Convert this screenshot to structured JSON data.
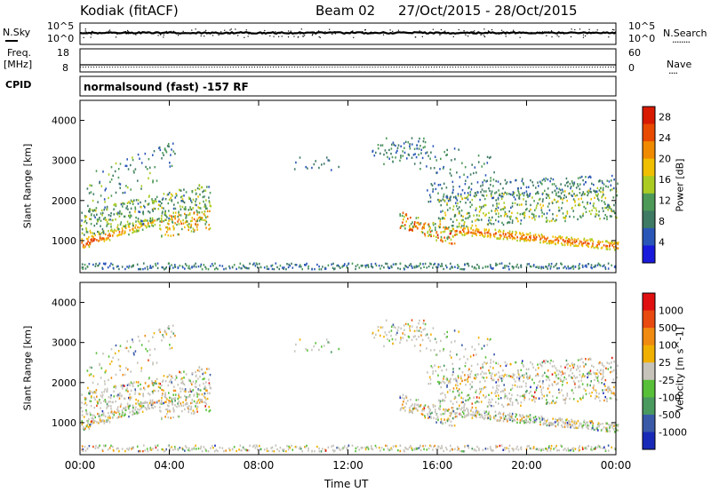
{
  "header": {
    "station": "Kodiak (fitACF)",
    "beam": "Beam 02",
    "dates": "27/Oct/2015 - 28/Oct/2015"
  },
  "nsky_panel": {
    "left_label": "N.Sky",
    "right_label": "N.Search",
    "left_ticks": [
      "10^5",
      "10^0"
    ],
    "right_ticks": [
      "10^5",
      "10^0"
    ],
    "right_legend_marker": "........"
  },
  "freq_panel": {
    "left_label": [
      "Freq.",
      "[MHz]"
    ],
    "right_label": "Nave",
    "left_ticks": [
      "18",
      "8"
    ],
    "right_ticks": [
      "60",
      "0"
    ],
    "right_legend_marker": "...."
  },
  "cpid": {
    "label": "CPID",
    "text": "normalsound (fast) -157 RF"
  },
  "chart_data": [
    {
      "type": "heatmap",
      "name": "power",
      "ylabel": "Slant Range [km]",
      "xlabel": "",
      "y_ticks": [
        "1000",
        "2000",
        "3000",
        "4000"
      ],
      "ylim": [
        200,
        4500
      ],
      "xlim_hours": [
        0,
        24
      ],
      "colorbar": {
        "label": "Power [dB]",
        "ticks": [
          "4",
          "8",
          "12",
          "16",
          "20",
          "24",
          "28"
        ],
        "range": [
          0,
          30
        ],
        "colors": [
          "#1a1adc",
          "#2a56b8",
          "#3f7a64",
          "#4d9a58",
          "#aacc22",
          "#f0c000",
          "#f08a00",
          "#e84a00",
          "#d81a00"
        ]
      }
    },
    {
      "type": "heatmap",
      "name": "velocity",
      "ylabel": "Slant Range [km]",
      "xlabel": "Time UT",
      "y_ticks": [
        "1000",
        "2000",
        "3000",
        "4000"
      ],
      "ylim": [
        200,
        4500
      ],
      "xlim_hours": [
        0,
        24
      ],
      "colorbar": {
        "label": "Velocity [m s^-1]",
        "ticks": [
          "1000",
          "500",
          "100",
          "25",
          "-25",
          "-100",
          "-500",
          "-1000"
        ],
        "colors": [
          "#1a2ab8",
          "#3a5aa8",
          "#4a9a60",
          "#58c038",
          "#c6c3bb",
          "#f0b000",
          "#f08a10",
          "#e84a10",
          "#e01010"
        ]
      }
    }
  ],
  "x_axis": {
    "ticks": [
      "00:00",
      "04:00",
      "08:00",
      "12:00",
      "16:00",
      "20:00",
      "00:00"
    ],
    "label": "Time UT"
  }
}
